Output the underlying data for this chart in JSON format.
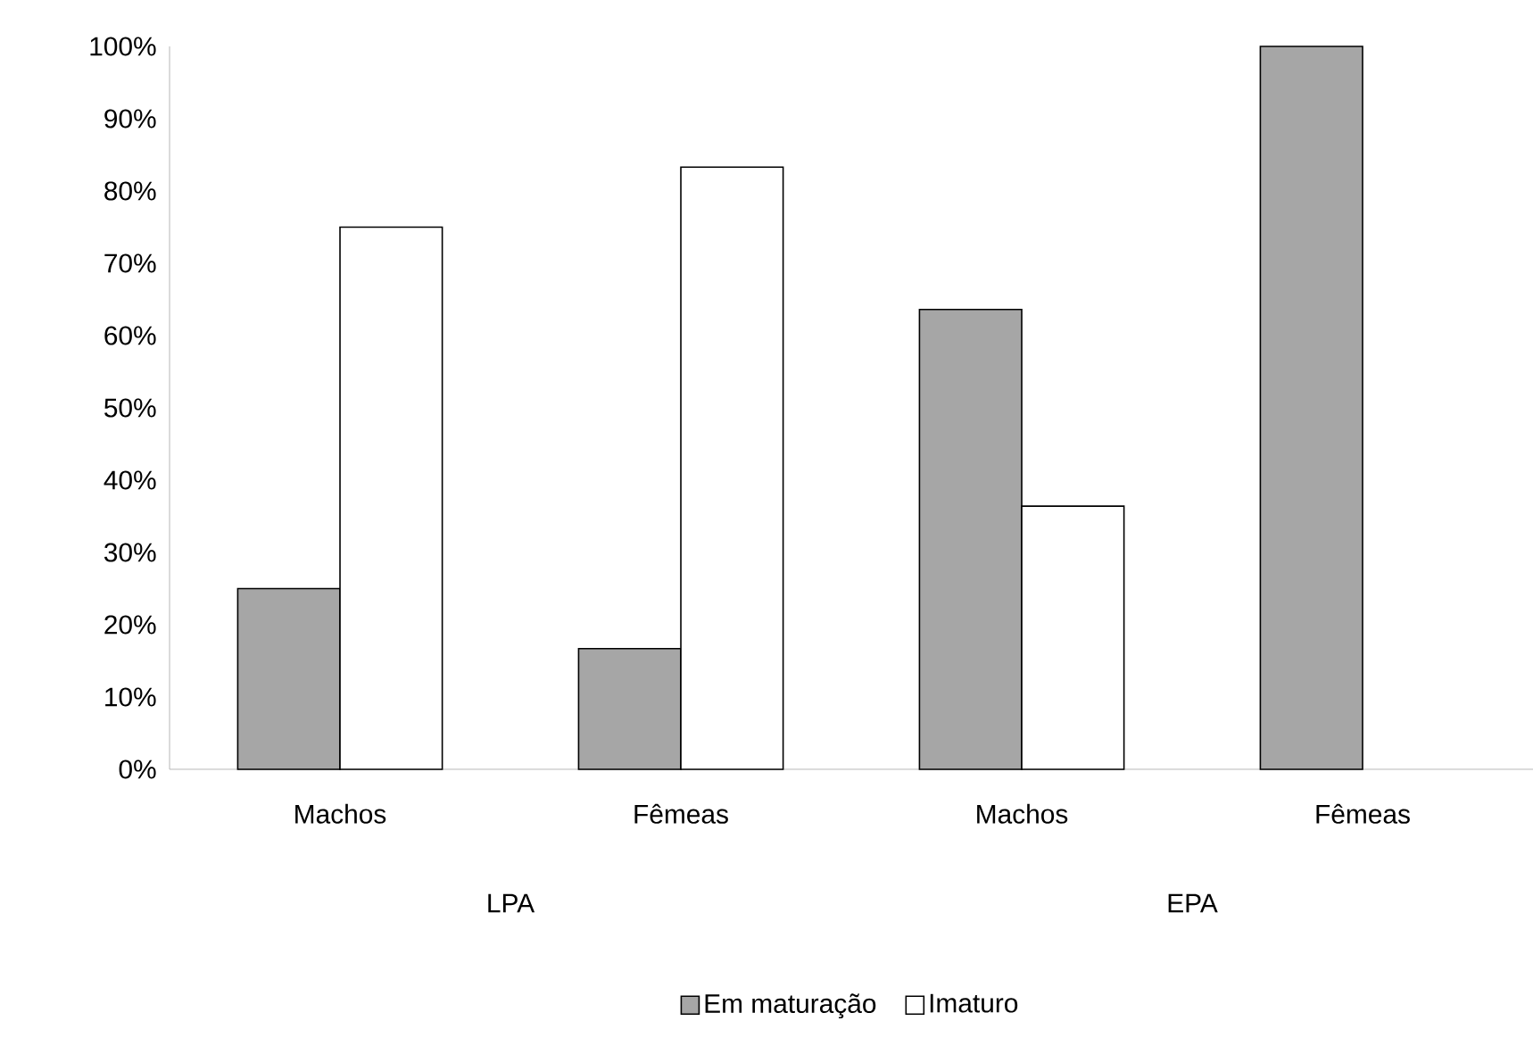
{
  "chart_data": {
    "type": "bar",
    "categories": [
      "Machos",
      "Fêmeas",
      "Machos",
      "Fêmeas"
    ],
    "series": [
      {
        "name": "Em maturação",
        "color": "#a6a6a6",
        "values": [
          25,
          16.7,
          63.6,
          100
        ]
      },
      {
        "name": "Imaturo",
        "color": "#ffffff",
        "values": [
          75,
          83.3,
          36.4,
          0
        ]
      }
    ],
    "annotations": [
      "LPA",
      "EPA"
    ],
    "ylim": [
      0,
      100
    ],
    "yticks": [
      {
        "value": 0,
        "label": "0%"
      },
      {
        "value": 10,
        "label": "10%"
      },
      {
        "value": 20,
        "label": "20%"
      },
      {
        "value": 30,
        "label": "30%"
      },
      {
        "value": 40,
        "label": "40%"
      },
      {
        "value": 50,
        "label": "50%"
      },
      {
        "value": 60,
        "label": "60%"
      },
      {
        "value": 70,
        "label": "70%"
      },
      {
        "value": 80,
        "label": "80%"
      },
      {
        "value": 90,
        "label": "90%"
      },
      {
        "value": 100,
        "label": "100%"
      }
    ],
    "legend": "bottom",
    "grid": false
  }
}
